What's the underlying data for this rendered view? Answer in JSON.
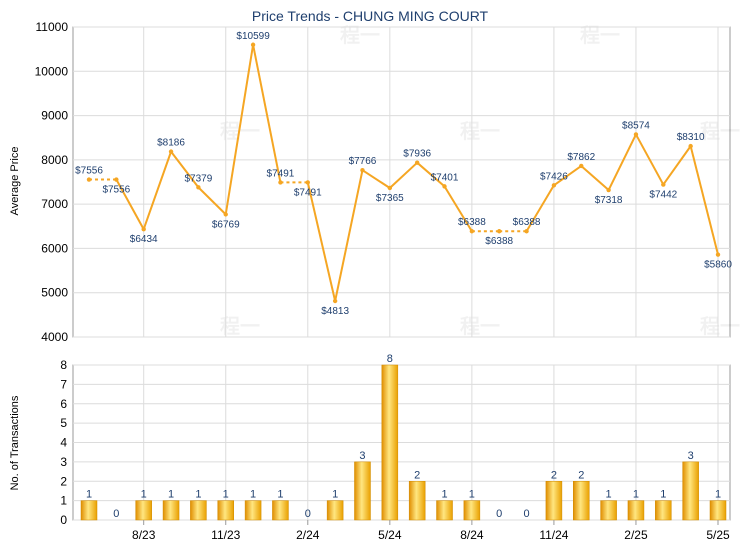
{
  "chart_data": [
    {
      "type": "line",
      "title": "Price Trends - CHUNG MING COURT",
      "ylabel": "Average Price",
      "ylim": [
        4000,
        11000
      ],
      "yticks": [
        "4000",
        "5000",
        "6000",
        "7000",
        "8000",
        "9000",
        "10000",
        "11000"
      ],
      "grid": true,
      "series": [
        {
          "color": "#f5a623",
          "values": [
            7556,
            7556,
            6434,
            8186,
            7379,
            6769,
            10599,
            7491,
            7491,
            4813,
            7766,
            7365,
            7936,
            7401,
            6388,
            6388,
            6388,
            7426,
            7862,
            7318,
            8574,
            7442,
            8310,
            5860
          ],
          "labels": [
            "$7556",
            "$7556",
            "$6434",
            "$8186",
            "$7379",
            "$6769",
            "$10599",
            "$7491",
            "$7491",
            "$4813",
            "$7766",
            "$7365",
            "$7936",
            "$7401",
            "$6388",
            "$6388",
            "$6388",
            "$7426",
            "$7862",
            "$7318",
            "$8574",
            "$7442",
            "$8310",
            "$5860"
          ],
          "interpolated_after": [
            0,
            7,
            14,
            15
          ]
        }
      ]
    },
    {
      "type": "bar",
      "ylabel": "No. of Transactions",
      "ylim": [
        0,
        8
      ],
      "yticks": [
        "0",
        "1",
        "2",
        "3",
        "4",
        "5",
        "6",
        "7",
        "8"
      ],
      "grid": true,
      "x_tick_labels": [
        {
          "index": 2,
          "label": "8/23"
        },
        {
          "index": 5,
          "label": "11/23"
        },
        {
          "index": 8,
          "label": "2/24"
        },
        {
          "index": 11,
          "label": "5/24"
        },
        {
          "index": 14,
          "label": "8/24"
        },
        {
          "index": 17,
          "label": "11/24"
        },
        {
          "index": 20,
          "label": "2/25"
        },
        {
          "index": 23,
          "label": "5/25"
        }
      ],
      "series": [
        {
          "color": "#f5a623",
          "values": [
            1,
            0,
            1,
            1,
            1,
            1,
            1,
            1,
            0,
            1,
            3,
            8,
            2,
            1,
            1,
            0,
            0,
            2,
            2,
            1,
            1,
            1,
            3,
            1
          ]
        }
      ]
    }
  ],
  "watermark": "程一"
}
